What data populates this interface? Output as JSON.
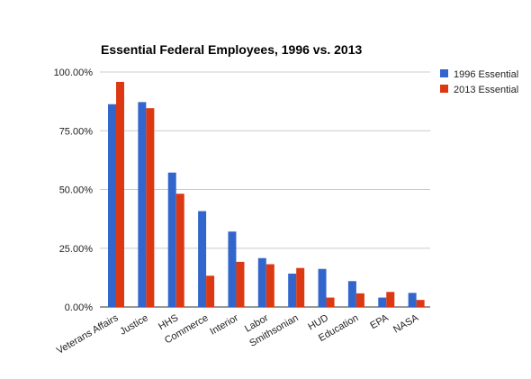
{
  "chart_data": {
    "type": "bar",
    "title": "Essential Federal Employees, 1996 vs. 2013",
    "xlabel": "",
    "ylabel": "",
    "categories": [
      "Veterans Affairs",
      "Justice",
      "HHS",
      "Commerce",
      "Interior",
      "Labor",
      "Smithsonian",
      "HUD",
      "Education",
      "EPA",
      "NASA"
    ],
    "series": [
      {
        "name": "1996 Essential",
        "color": "#3366cc",
        "values": [
          86.3,
          87.2,
          57.2,
          40.8,
          32.1,
          20.8,
          14.2,
          16.2,
          11.0,
          4.0,
          6.0
        ]
      },
      {
        "name": "2013 Essential",
        "color": "#dc3912",
        "values": [
          95.8,
          84.6,
          48.2,
          13.3,
          19.2,
          18.2,
          16.6,
          4.0,
          5.8,
          6.4,
          3.0
        ]
      }
    ],
    "ylim": [
      0,
      100
    ],
    "yticks": [
      0,
      25,
      50,
      75,
      100
    ],
    "ytick_labels": [
      "0.00%",
      "25.00%",
      "50.00%",
      "75.00%",
      "100.00%"
    ],
    "grid": true,
    "legend_position": "right"
  }
}
